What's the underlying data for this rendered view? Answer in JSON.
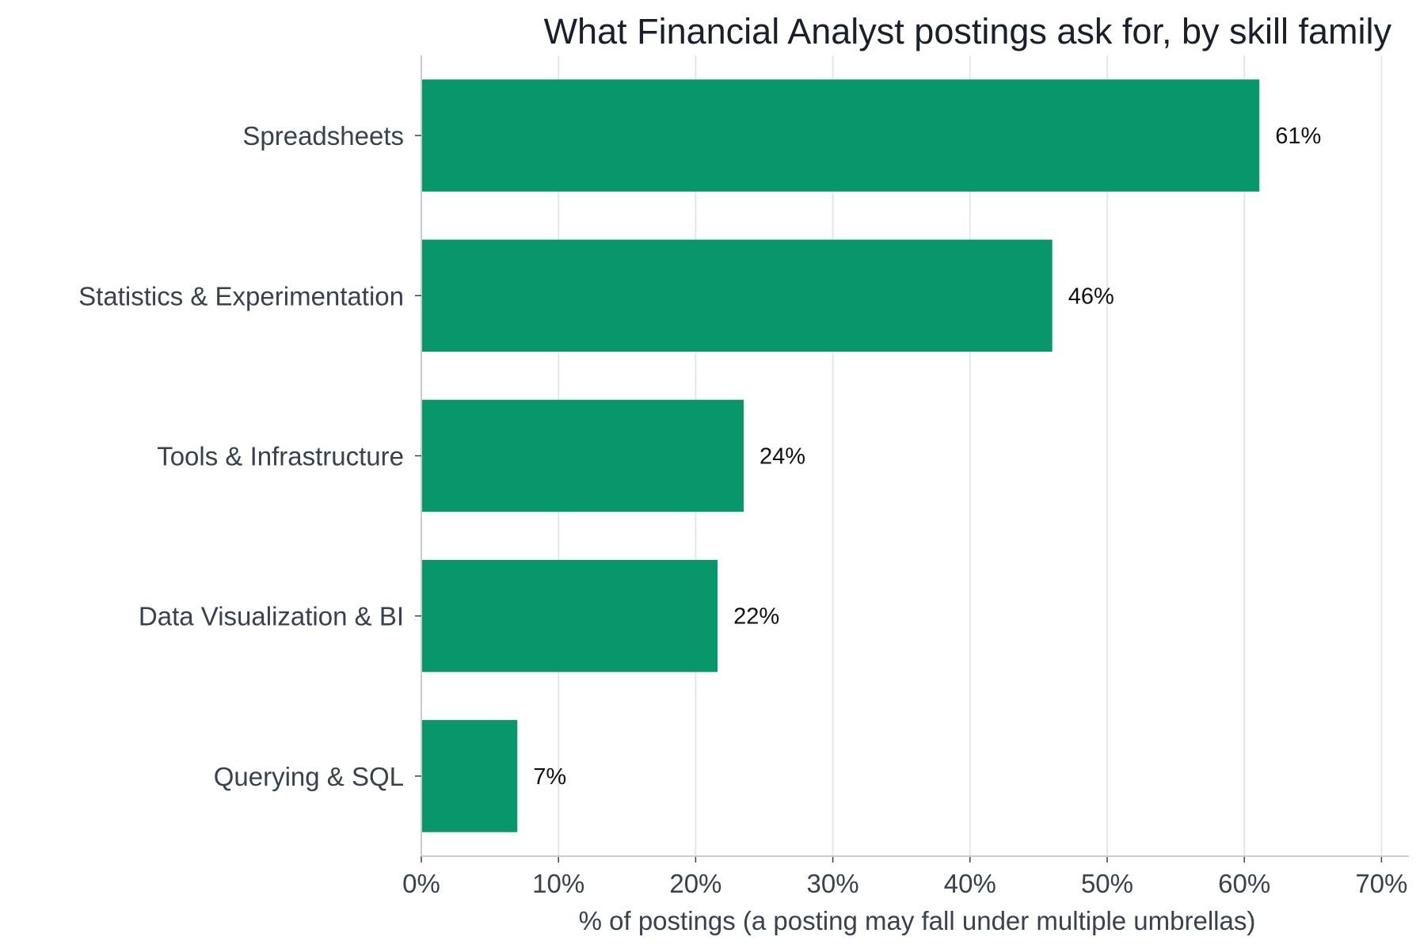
{
  "chart_data": {
    "type": "bar",
    "orientation": "horizontal",
    "title": "What Financial Analyst postings ask for, by skill family",
    "xlabel": "% of postings (a posting may fall under multiple umbrellas)",
    "ylabel": "",
    "categories": [
      "Spreadsheets",
      "Statistics & Experimentation",
      "Tools & Infrastructure",
      "Data Visualization & BI",
      "Querying & SQL"
    ],
    "values": [
      61.1,
      46.0,
      23.5,
      21.6,
      7.0
    ],
    "data_labels": [
      "61%",
      "46%",
      "24%",
      "22%",
      "7%"
    ],
    "xlim": [
      0,
      72
    ],
    "xticks": [
      0,
      10,
      20,
      30,
      40,
      50,
      60,
      70
    ],
    "xtick_labels": [
      "0%",
      "10%",
      "20%",
      "30%",
      "40%",
      "50%",
      "60%",
      "70%"
    ],
    "grid": "vertical",
    "legend": "none",
    "colors": {
      "bar": "#07976b",
      "title": "#1a1f2e",
      "axis_text": "#374151",
      "data_label": "#111111",
      "grid": "#e6e6e6",
      "axis_line": "#cccccc"
    }
  }
}
